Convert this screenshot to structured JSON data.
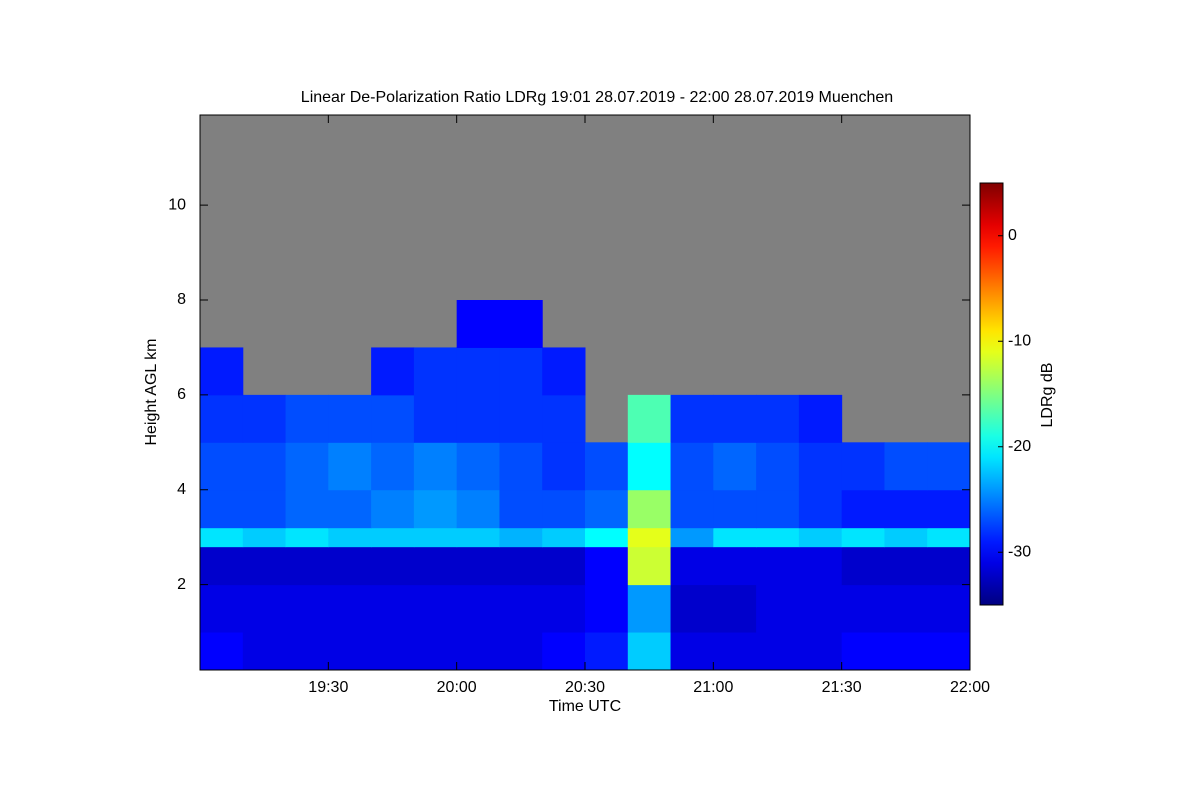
{
  "chart_data": {
    "type": "heatmap",
    "title": "Linear De-Polarization Ratio LDRg   19:01 28.07.2019 - 22:00 28.07.2019 Muenchen",
    "xlabel": "Time UTC",
    "ylabel": "Height AGL km",
    "colorbar_label": "LDRg dB",
    "colormap": "jet",
    "missing_color": "#808080",
    "xlim": [
      19.0,
      22.0
    ],
    "ylim": [
      0.2,
      11.9
    ],
    "clim": [
      -35,
      5
    ],
    "xticks": [
      {
        "value": 19.5,
        "label": "19:30"
      },
      {
        "value": 20.0,
        "label": "20:00"
      },
      {
        "value": 20.5,
        "label": "20:30"
      },
      {
        "value": 21.0,
        "label": "21:00"
      },
      {
        "value": 21.5,
        "label": "21:30"
      },
      {
        "value": 22.0,
        "label": "22:00"
      }
    ],
    "yticks": [
      2,
      4,
      6,
      8,
      10
    ],
    "cticks": [
      -30,
      -20,
      -10,
      0
    ],
    "x_bins": [
      19.0,
      19.1667,
      19.3333,
      19.5,
      19.6667,
      19.8333,
      20.0,
      20.1667,
      20.3333,
      20.5,
      20.6667,
      20.8333,
      21.0,
      21.1667,
      21.3333,
      21.5,
      21.6667,
      21.8333,
      22.0
    ],
    "y_bins": [
      0.2,
      1,
      2,
      2.8,
      3.2,
      4,
      5,
      6,
      7,
      8,
      11.9
    ],
    "values": [
      [
        -30,
        -31,
        -31,
        -31,
        -31,
        -31,
        -31,
        -31,
        -30,
        -29,
        -22,
        -31,
        -31,
        -31,
        -31,
        -30,
        -30,
        -30
      ],
      [
        -31,
        -31,
        -31,
        -31,
        -31,
        -31,
        -31,
        -31,
        -31,
        -30,
        -24,
        -32,
        -32,
        -31,
        -31,
        -31,
        -31,
        -31
      ],
      [
        -32,
        -32,
        -32,
        -32,
        -32,
        -32,
        -32,
        -32,
        -32,
        -30,
        -12,
        -31,
        -31,
        -31,
        -31,
        -32,
        -32,
        -32
      ],
      [
        -21,
        -22,
        -21,
        -22,
        -22,
        -22,
        -22,
        -23,
        -22,
        -20,
        -11,
        -24,
        -21,
        -21,
        -22,
        -21,
        -22,
        -21
      ],
      [
        -27,
        -27,
        -26,
        -26,
        -25,
        -24,
        -25,
        -27,
        -27,
        -26,
        -14,
        -27,
        -27,
        -27,
        -28,
        -29,
        -29,
        -29
      ],
      [
        -27,
        -27,
        -26,
        -25,
        -26,
        -25,
        -26,
        -27,
        -28,
        -27,
        -20,
        -27,
        -26,
        -27,
        -28,
        -28,
        -27,
        -27
      ],
      [
        -28,
        -28,
        -27,
        -27,
        -27,
        -28,
        -28,
        -28,
        -28,
        null,
        -17,
        -28,
        -28,
        -28,
        -29,
        null,
        null,
        null
      ],
      [
        -29,
        null,
        null,
        null,
        -29,
        -28,
        -28,
        -28,
        -29,
        null,
        null,
        null,
        null,
        null,
        null,
        null,
        null,
        null
      ],
      [
        null,
        null,
        null,
        null,
        null,
        null,
        -30,
        -30,
        null,
        null,
        null,
        null,
        null,
        null,
        null,
        null,
        null,
        null
      ],
      [
        null,
        null,
        null,
        null,
        null,
        null,
        null,
        null,
        null,
        null,
        null,
        null,
        null,
        null,
        null,
        null,
        null,
        null
      ]
    ]
  }
}
